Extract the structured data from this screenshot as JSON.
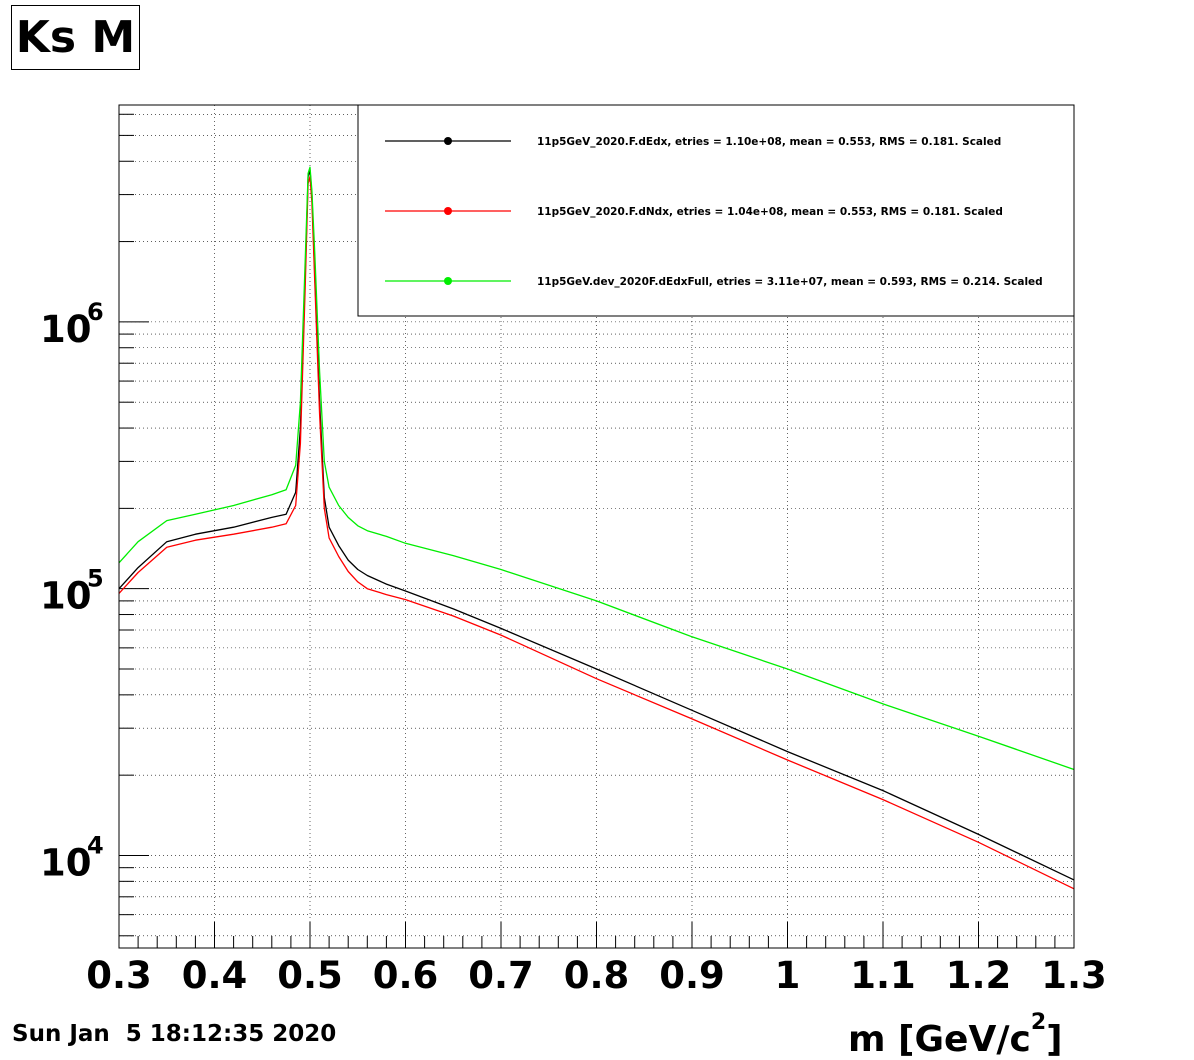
{
  "title": "Ks M",
  "timestamp": "Sun Jan  5 18:12:35 2020",
  "chart_data": {
    "type": "line",
    "title": "Ks M",
    "xlabel": "m [GeV/c²]",
    "xlabel_base": "m [GeV/c",
    "xlabel_sup": "2",
    "xlabel_end": "]",
    "ylabel": "",
    "xlim": [
      0.3,
      1.3
    ],
    "ylim": [
      4500,
      6500000
    ],
    "yscale": "log",
    "grid": true,
    "legend_position": "top-right",
    "x_ticks": [
      "0.3",
      "0.4",
      "0.5",
      "0.6",
      "0.7",
      "0.8",
      "0.9",
      "1",
      "1.1",
      "1.2",
      "1.3"
    ],
    "y_ticks": [
      {
        "base": "10",
        "exp": "4",
        "value": 10000
      },
      {
        "base": "10",
        "exp": "5",
        "value": 100000
      },
      {
        "base": "10",
        "exp": "6",
        "value": 1000000
      }
    ],
    "series": [
      {
        "name": "11p5GeV_2020.F.dEdx, etries =   1.10e+08, mean =   0.553, RMS =   0.181. Scaled",
        "color": "#000000",
        "x": [
          0.3,
          0.32,
          0.35,
          0.38,
          0.42,
          0.46,
          0.475,
          0.485,
          0.49,
          0.495,
          0.498,
          0.5,
          0.502,
          0.505,
          0.51,
          0.515,
          0.52,
          0.53,
          0.54,
          0.55,
          0.56,
          0.58,
          0.6,
          0.65,
          0.7,
          0.8,
          0.9,
          1.0,
          1.1,
          1.2,
          1.3
        ],
        "y": [
          100000,
          120000,
          150000,
          160000,
          170000,
          185000,
          190000,
          230000,
          400000,
          1500000,
          3500000,
          3700000,
          3000000,
          1500000,
          500000,
          220000,
          170000,
          145000,
          128000,
          118000,
          112000,
          104000,
          98000,
          84000,
          71000,
          50000,
          35000,
          24500,
          17500,
          12000,
          8100
        ]
      },
      {
        "name": "11p5GeV_2020.F.dNdx, etries =   1.04e+08, mean =   0.553, RMS =   0.181. Scaled",
        "color": "#ff0000",
        "x": [
          0.3,
          0.32,
          0.35,
          0.38,
          0.42,
          0.46,
          0.475,
          0.485,
          0.49,
          0.495,
          0.498,
          0.5,
          0.502,
          0.505,
          0.51,
          0.515,
          0.52,
          0.53,
          0.54,
          0.55,
          0.56,
          0.58,
          0.6,
          0.65,
          0.7,
          0.8,
          0.9,
          1.0,
          1.1,
          1.2,
          1.3
        ],
        "y": [
          96000,
          115000,
          143000,
          152000,
          160000,
          170000,
          175000,
          205000,
          350000,
          1350000,
          3300000,
          3500000,
          2800000,
          1400000,
          450000,
          200000,
          155000,
          132000,
          116000,
          106000,
          100000,
          95000,
          91000,
          79000,
          67000,
          46000,
          32500,
          22800,
          16200,
          11200,
          7500
        ]
      },
      {
        "name": "11p5GeV.dev_2020F.dEdxFull, etries =   3.11e+07, mean =   0.593, RMS =   0.214. Scaled",
        "color": "#00ee00",
        "x": [
          0.3,
          0.32,
          0.35,
          0.38,
          0.42,
          0.46,
          0.475,
          0.485,
          0.49,
          0.495,
          0.498,
          0.5,
          0.502,
          0.505,
          0.51,
          0.515,
          0.52,
          0.53,
          0.54,
          0.55,
          0.56,
          0.58,
          0.6,
          0.65,
          0.7,
          0.8,
          0.9,
          1.0,
          1.1,
          1.2,
          1.3
        ],
        "y": [
          125000,
          150000,
          180000,
          190000,
          205000,
          225000,
          235000,
          290000,
          500000,
          1700000,
          3600000,
          3800000,
          3100000,
          1800000,
          650000,
          300000,
          240000,
          205000,
          185000,
          172000,
          165000,
          157000,
          148000,
          133000,
          118000,
          90000,
          66000,
          50000,
          37000,
          28000,
          21000
        ]
      }
    ]
  }
}
